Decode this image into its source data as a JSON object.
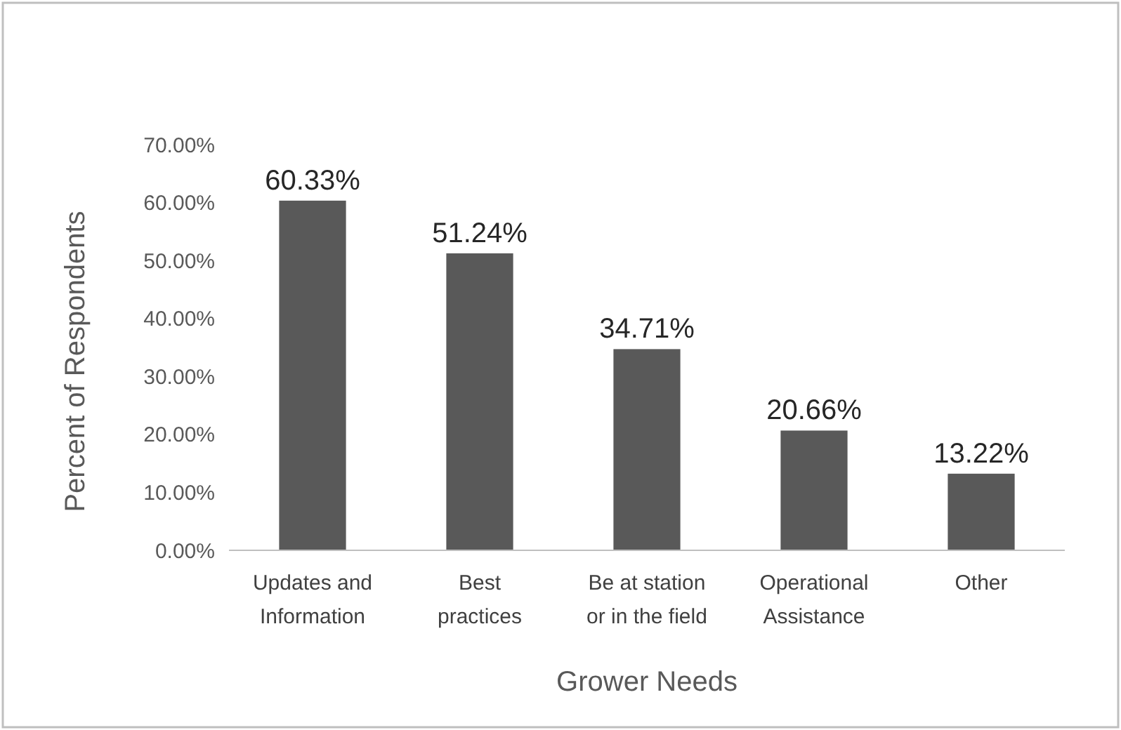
{
  "chart_data": {
    "type": "bar",
    "xlabel": "Grower Needs",
    "ylabel": "Percent of Respondents",
    "categories": [
      "Updates and\nInformation",
      "Best\npractices",
      "Be at station\nor in the field",
      "Operational\nAssistance",
      "Other"
    ],
    "values": [
      60.33,
      51.24,
      34.71,
      20.66,
      13.22
    ],
    "value_labels": [
      "60.33%",
      "51.24%",
      "34.71%",
      "20.66%",
      "13.22%"
    ],
    "color": "#595959",
    "ylim": [
      0,
      70
    ],
    "yticks": [
      {
        "value": 0,
        "label": "0.00%"
      },
      {
        "value": 10,
        "label": "10.00%"
      },
      {
        "value": 20,
        "label": "20.00%"
      },
      {
        "value": 30,
        "label": "30.00%"
      },
      {
        "value": 40,
        "label": "40.00%"
      },
      {
        "value": 50,
        "label": "50.00%"
      },
      {
        "value": 60,
        "label": "60.00%"
      },
      {
        "value": 70,
        "label": "70.00%"
      }
    ],
    "grid": false
  }
}
